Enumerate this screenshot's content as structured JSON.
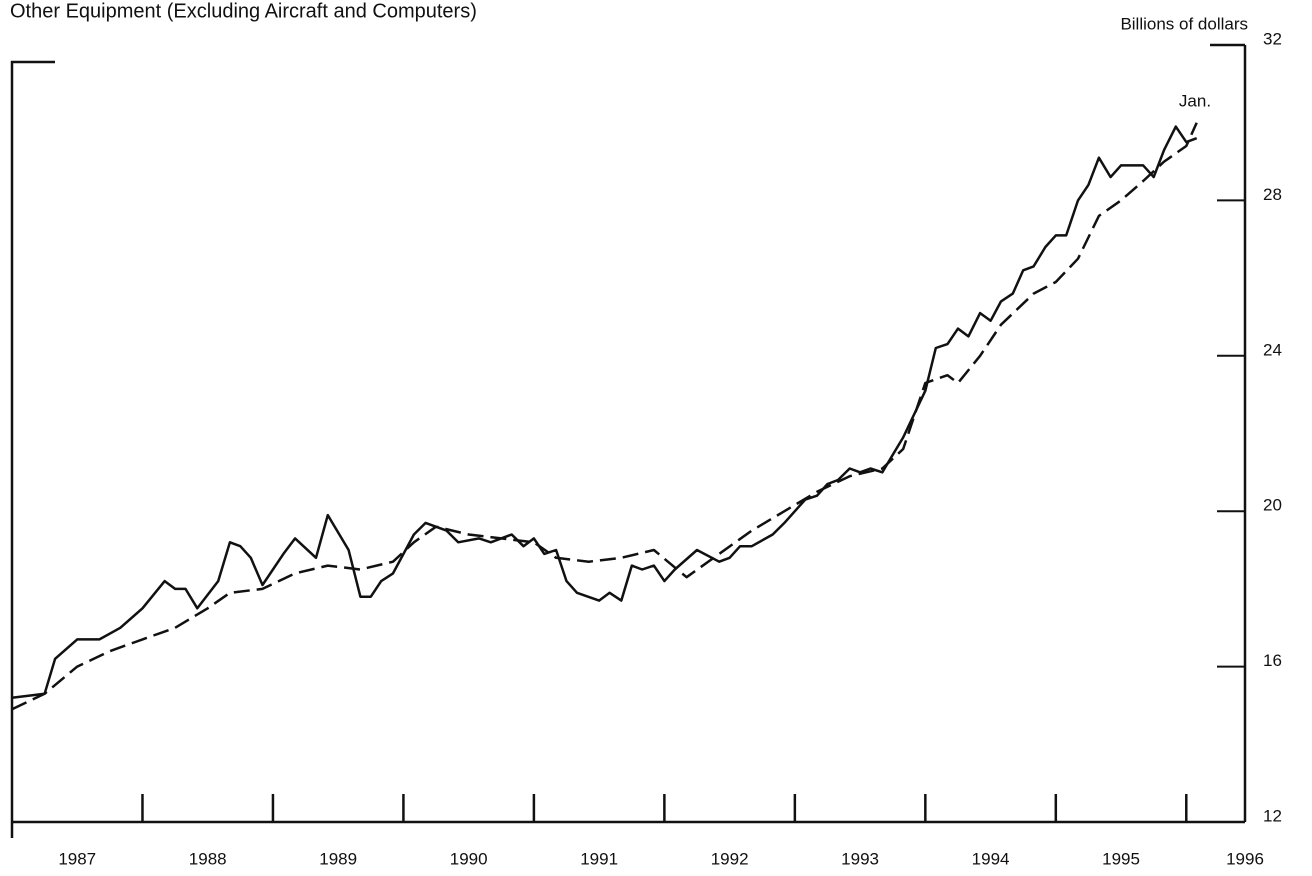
{
  "chart_data": {
    "type": "line",
    "title": "Other Equipment (Excluding Aircraft and Computers)",
    "y_axis_label": "Billions of dollars",
    "annotation": "Jan.",
    "xlim": [
      1987,
      1996.45
    ],
    "xticks": [
      1988,
      1989,
      1990,
      1991,
      1992,
      1993,
      1994,
      1995,
      1996
    ],
    "x_labels": [
      {
        "value": 1987.5,
        "label": "1987"
      },
      {
        "value": 1988.5,
        "label": "1988"
      },
      {
        "value": 1989.5,
        "label": "1989"
      },
      {
        "value": 1990.5,
        "label": "1990"
      },
      {
        "value": 1991.5,
        "label": "1991"
      },
      {
        "value": 1992.5,
        "label": "1992"
      },
      {
        "value": 1993.5,
        "label": "1993"
      },
      {
        "value": 1994.5,
        "label": "1994"
      },
      {
        "value": 1995.5,
        "label": "1995"
      },
      {
        "value": 1996.45,
        "label": "1996"
      }
    ],
    "ylim": [
      12,
      32
    ],
    "yticks": [
      12,
      16,
      20,
      24,
      28,
      32
    ],
    "series": [
      {
        "style": "solid",
        "color": "#111111",
        "x": [
          1987.0,
          1987.25,
          1987.33,
          1987.5,
          1987.67,
          1987.83,
          1988.0,
          1988.17,
          1988.25,
          1988.33,
          1988.42,
          1988.58,
          1988.67,
          1988.75,
          1988.83,
          1988.92,
          1989.08,
          1989.17,
          1989.33,
          1989.42,
          1989.58,
          1989.67,
          1989.75,
          1989.83,
          1989.92,
          1990.08,
          1990.17,
          1990.33,
          1990.42,
          1990.58,
          1990.67,
          1990.83,
          1990.92,
          1991.0,
          1991.08,
          1991.17,
          1991.25,
          1991.33,
          1991.5,
          1991.58,
          1991.67,
          1991.75,
          1991.83,
          1991.92,
          1992.0,
          1992.08,
          1992.25,
          1992.42,
          1992.5,
          1992.58,
          1992.67,
          1992.83,
          1992.92,
          1993.08,
          1993.17,
          1993.25,
          1993.33,
          1993.42,
          1993.5,
          1993.58,
          1993.67,
          1993.83,
          1994.0,
          1994.08,
          1994.17,
          1994.25,
          1994.33,
          1994.42,
          1994.5,
          1994.58,
          1994.67,
          1994.75,
          1994.83,
          1994.92,
          1995.0,
          1995.08,
          1995.17,
          1995.25,
          1995.33,
          1995.42,
          1995.5,
          1995.58,
          1995.67,
          1995.75,
          1995.83,
          1995.92,
          1996.0,
          1996.08
        ],
        "values": [
          15.2,
          15.3,
          16.2,
          16.7,
          16.7,
          17.0,
          17.5,
          18.2,
          18.0,
          18.0,
          17.5,
          18.2,
          19.2,
          19.1,
          18.8,
          18.1,
          18.9,
          19.3,
          18.8,
          19.9,
          19.0,
          17.8,
          17.8,
          18.2,
          18.4,
          19.4,
          19.7,
          19.5,
          19.2,
          19.3,
          19.2,
          19.4,
          19.1,
          19.3,
          18.9,
          19.0,
          18.2,
          17.9,
          17.7,
          17.9,
          17.7,
          18.6,
          18.5,
          18.6,
          18.2,
          18.5,
          19.0,
          18.7,
          18.8,
          19.1,
          19.1,
          19.4,
          19.7,
          20.3,
          20.4,
          20.7,
          20.8,
          21.1,
          21.0,
          21.1,
          21.0,
          21.9,
          23.1,
          24.2,
          24.3,
          24.7,
          24.5,
          25.1,
          24.9,
          25.4,
          25.6,
          26.2,
          26.3,
          26.8,
          27.1,
          27.1,
          28.0,
          28.4,
          29.1,
          28.6,
          28.9,
          28.9,
          28.9,
          28.6,
          29.3,
          29.9,
          29.5,
          29.6
        ]
      },
      {
        "style": "dashed",
        "color": "#111111",
        "x": [
          1987.0,
          1987.25,
          1987.5,
          1987.75,
          1988.0,
          1988.25,
          1988.5,
          1988.67,
          1988.92,
          1989.17,
          1989.42,
          1989.67,
          1989.92,
          1990.08,
          1990.25,
          1990.5,
          1990.75,
          1991.0,
          1991.17,
          1991.42,
          1991.67,
          1991.92,
          1992.17,
          1992.42,
          1992.67,
          1992.92,
          1993.17,
          1993.42,
          1993.67,
          1993.83,
          1994.0,
          1994.17,
          1994.25,
          1994.42,
          1994.58,
          1994.83,
          1995.0,
          1995.17,
          1995.33,
          1995.5,
          1995.67,
          1995.83,
          1996.0,
          1996.08
        ],
        "values": [
          14.9,
          15.3,
          16.0,
          16.4,
          16.7,
          17.0,
          17.5,
          17.9,
          18.0,
          18.4,
          18.6,
          18.5,
          18.7,
          19.2,
          19.6,
          19.4,
          19.3,
          19.2,
          18.8,
          18.7,
          18.8,
          19.0,
          18.3,
          18.9,
          19.5,
          20.0,
          20.5,
          20.9,
          21.1,
          21.6,
          23.3,
          23.5,
          23.3,
          24.0,
          24.8,
          25.6,
          25.9,
          26.5,
          27.6,
          28.0,
          28.5,
          29.0,
          29.4,
          30.0
        ]
      }
    ]
  }
}
